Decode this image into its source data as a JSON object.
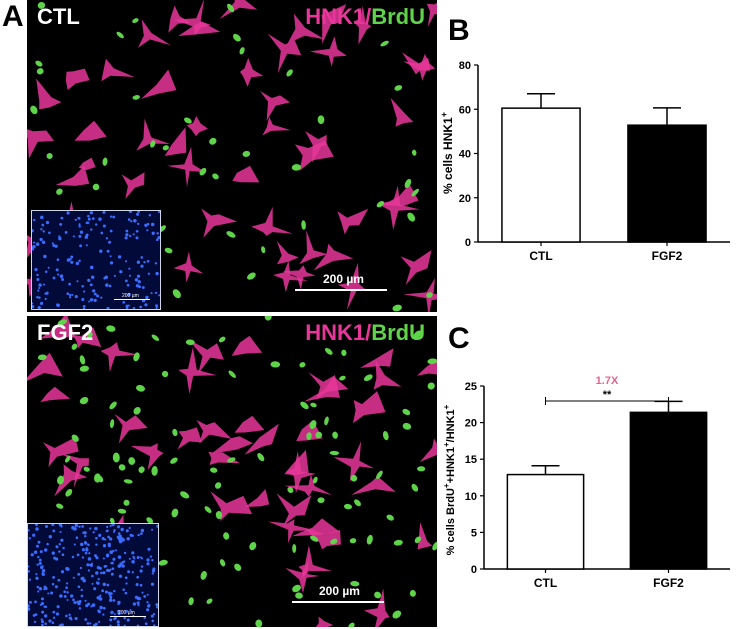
{
  "panels": {
    "a": {
      "letter": "A",
      "top_label": "CTL",
      "bottom_label": "FGF2",
      "stain_marker": "HNK1",
      "stain_sep": "/",
      "stain_prolif": "BrdU",
      "scale": "200 µm",
      "inset_scale": "200 µm"
    },
    "b": {
      "letter": "B"
    },
    "c": {
      "letter": "C"
    }
  },
  "colors": {
    "hnk1": "#e8369a",
    "brdu": "#5fd34a",
    "annotation": "#e8628e",
    "bar_ctl": "#ffffff",
    "bar_fgf2": "#000000"
  },
  "chart_data": [
    {
      "type": "bar",
      "panel": "B",
      "categories": [
        "CTL",
        "FGF2"
      ],
      "values": [
        60.5,
        52.8
      ],
      "errors": [
        6.5,
        7.8
      ],
      "ylabel": "% cells HNK1",
      "ylabel_sup": "+",
      "ylim": [
        0,
        80
      ],
      "yticks": [
        0,
        20,
        40,
        60,
        80
      ]
    },
    {
      "type": "bar",
      "panel": "C",
      "categories": [
        "CTL",
        "FGF2"
      ],
      "values": [
        12.9,
        21.4
      ],
      "errors": [
        1.2,
        1.5
      ],
      "ylabel_parts": [
        "% cells BrdU",
        "+",
        "+HNK1",
        "+",
        "/HNK1",
        "+"
      ],
      "ylim": [
        0,
        25
      ],
      "yticks": [
        0,
        5,
        10,
        15,
        20,
        25
      ],
      "annotation_fold": "1.7X",
      "annotation_sig": "**"
    }
  ]
}
